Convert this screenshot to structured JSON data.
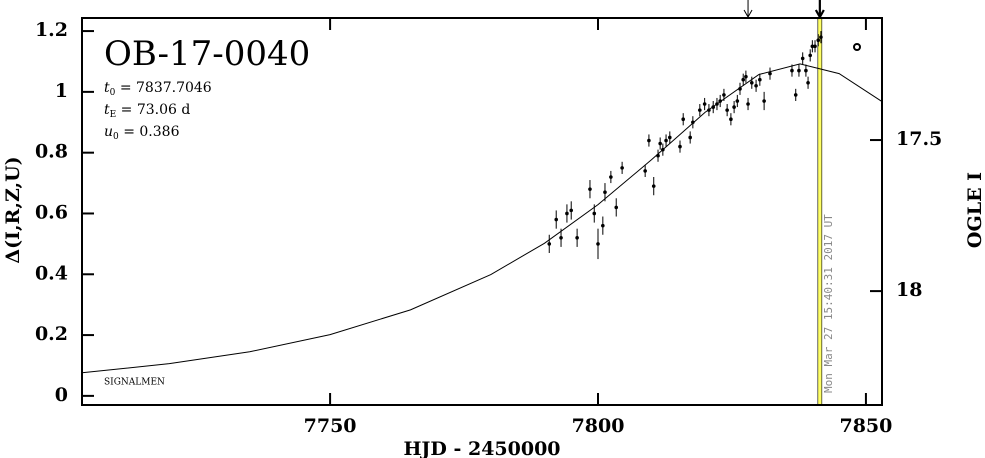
{
  "chart_data": {
    "type": "scatter",
    "title": "OB-17-0040",
    "params": [
      {
        "symbol": "t",
        "subscript": "0",
        "text": " = 7837.7046"
      },
      {
        "symbol": "t",
        "subscript": "E",
        "text": " = 73.06 d"
      },
      {
        "symbol": "u",
        "subscript": "0",
        "text": " = 0.386"
      }
    ],
    "xlabel": "HJD - 2450000",
    "ylabel": "Δ(I,R,Z,U)",
    "y2label": "OGLE I",
    "footnote": "SIGNALMEN",
    "timestamp": "Mon Mar 27 15:40:31 2017 UT",
    "xlim": [
      7703.7,
      7853
    ],
    "ylim": [
      -0.03,
      1.243
    ],
    "y2lim": [
      18.377,
      17.096
    ],
    "xticks": [
      7750,
      7800,
      7850
    ],
    "yticks": [
      0,
      0.2,
      0.4,
      0.6,
      0.8,
      1,
      1.2
    ],
    "y2ticks": [
      17.5,
      18
    ],
    "vlines": [
      {
        "x": 7841.4,
        "color": "#ffff66"
      }
    ],
    "arrows": [
      {
        "x": 7828,
        "bold": false
      },
      {
        "x": 7841.4,
        "bold": true
      }
    ],
    "series": [
      {
        "color": "#000000",
        "x": [
          7790.9,
          7792.2,
          7793.1,
          7794.2,
          7795,
          7796.1,
          7798.5,
          7799.3,
          7800,
          7800.9,
          7801.3,
          7802.4,
          7803.4,
          7804.5,
          7808.8,
          7809.5,
          7810.4,
          7811.2,
          7811.6,
          7812.1,
          7812.7,
          7813.4,
          7815.3,
          7815.9,
          7817.2,
          7817.7,
          7819,
          7819.9,
          7820.7,
          7821.5,
          7822.2,
          7822.8,
          7823.5,
          7824.1,
          7824.8,
          7825.4,
          7826,
          7826.5,
          7827.1,
          7827.6,
          7828,
          7828.7,
          7829.5,
          7830.2,
          7831,
          7832.1,
          7836.2,
          7836.9,
          7837.5,
          7838.2,
          7838.8,
          7839.2,
          7839.6,
          7840,
          7840.5,
          7841.1,
          7841.6
        ],
        "values": [
          0.5,
          0.58,
          0.52,
          0.6,
          0.61,
          0.52,
          0.68,
          0.6,
          0.5,
          0.56,
          0.67,
          0.72,
          0.62,
          0.75,
          0.74,
          0.84,
          0.69,
          0.79,
          0.83,
          0.81,
          0.84,
          0.85,
          0.82,
          0.91,
          0.85,
          0.9,
          0.94,
          0.96,
          0.94,
          0.95,
          0.96,
          0.97,
          0.99,
          0.94,
          0.91,
          0.95,
          0.97,
          1.01,
          1.04,
          1.05,
          0.96,
          1.03,
          1.02,
          1.04,
          0.97,
          1.06,
          1.07,
          0.99,
          1.07,
          1.11,
          1.07,
          1.03,
          1.12,
          1.15,
          1.15,
          1.17,
          1.18
        ],
        "errors": [
          0.03,
          0.03,
          0.03,
          0.03,
          0.03,
          0.03,
          0.03,
          0.03,
          0.05,
          0.03,
          0.03,
          0.02,
          0.03,
          0.02,
          0.02,
          0.02,
          0.03,
          0.02,
          0.02,
          0.02,
          0.02,
          0.02,
          0.02,
          0.02,
          0.02,
          0.02,
          0.02,
          0.02,
          0.02,
          0.02,
          0.02,
          0.02,
          0.02,
          0.02,
          0.02,
          0.02,
          0.02,
          0.02,
          0.02,
          0.02,
          0.02,
          0.02,
          0.02,
          0.02,
          0.03,
          0.02,
          0.02,
          0.02,
          0.02,
          0.02,
          0.02,
          0.02,
          0.02,
          0.02,
          0.02,
          0.02,
          0.02
        ]
      },
      {
        "color": "#000000",
        "x": [
          7703.7,
          7720,
          7735,
          7750,
          7765,
          7780,
          7790,
          7800,
          7810,
          7820,
          7830,
          7837.7,
          7845,
          7853
        ],
        "values": [
          0.076,
          0.106,
          0.145,
          0.2015,
          0.283,
          0.399,
          0.502,
          0.629,
          0.777,
          0.933,
          1.057,
          1.092,
          1.06,
          0.968
        ]
      }
    ]
  }
}
